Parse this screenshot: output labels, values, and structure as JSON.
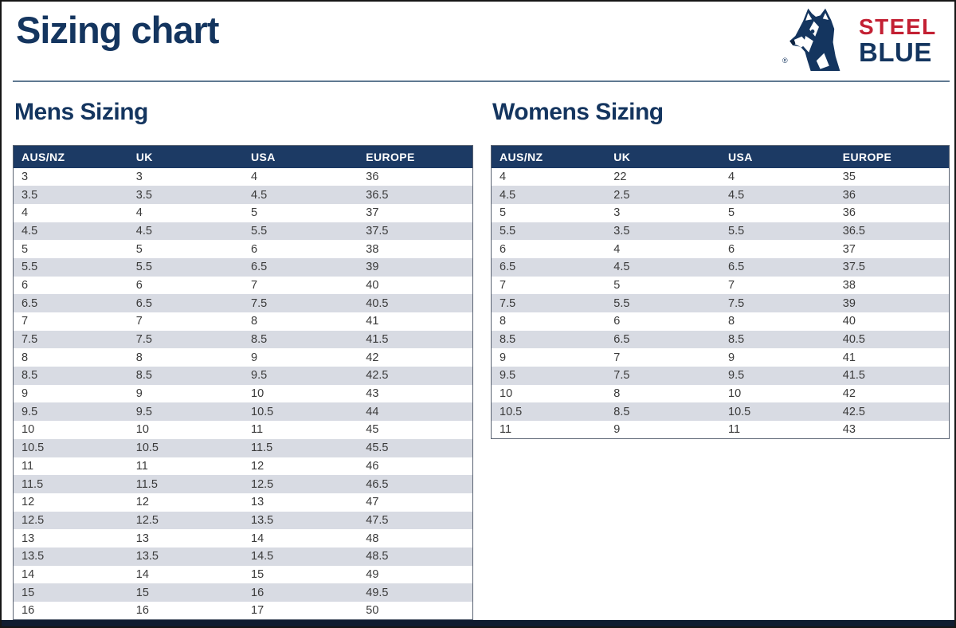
{
  "page": {
    "title": "Sizing chart"
  },
  "logo": {
    "brand_top": "STEEL",
    "brand_bottom": "BLUE",
    "registered_mark": "®",
    "icon": "wolf-head-icon",
    "colors": {
      "steel_red": "#c32033",
      "blue_navy": "#14355f"
    }
  },
  "colors": {
    "navy_text": "#14355f",
    "table_header_bg": "#1c3a64",
    "row_stripe": "#d8dbe3",
    "divider": "#5f7991",
    "bottom_bar": "#101c30",
    "cell_text": "#3a3a3a"
  },
  "columns": [
    "AUS/NZ",
    "UK",
    "USA",
    "EUROPE"
  ],
  "mens": {
    "heading": "Mens Sizing",
    "rows": [
      [
        "3",
        "3",
        "4",
        "36"
      ],
      [
        "3.5",
        "3.5",
        "4.5",
        "36.5"
      ],
      [
        "4",
        "4",
        "5",
        "37"
      ],
      [
        "4.5",
        "4.5",
        "5.5",
        "37.5"
      ],
      [
        "5",
        "5",
        "6",
        "38"
      ],
      [
        "5.5",
        "5.5",
        "6.5",
        "39"
      ],
      [
        "6",
        "6",
        "7",
        "40"
      ],
      [
        "6.5",
        "6.5",
        "7.5",
        "40.5"
      ],
      [
        "7",
        "7",
        "8",
        "41"
      ],
      [
        "7.5",
        "7.5",
        "8.5",
        "41.5"
      ],
      [
        "8",
        "8",
        "9",
        "42"
      ],
      [
        "8.5",
        "8.5",
        "9.5",
        "42.5"
      ],
      [
        "9",
        "9",
        "10",
        "43"
      ],
      [
        "9.5",
        "9.5",
        "10.5",
        "44"
      ],
      [
        "10",
        "10",
        "11",
        "45"
      ],
      [
        "10.5",
        "10.5",
        "11.5",
        "45.5"
      ],
      [
        "11",
        "11",
        "12",
        "46"
      ],
      [
        "11.5",
        "11.5",
        "12.5",
        "46.5"
      ],
      [
        "12",
        "12",
        "13",
        "47"
      ],
      [
        "12.5",
        "12.5",
        "13.5",
        "47.5"
      ],
      [
        "13",
        "13",
        "14",
        "48"
      ],
      [
        "13.5",
        "13.5",
        "14.5",
        "48.5"
      ],
      [
        "14",
        "14",
        "15",
        "49"
      ],
      [
        "15",
        "15",
        "16",
        "49.5"
      ],
      [
        "16",
        "16",
        "17",
        "50"
      ]
    ]
  },
  "womens": {
    "heading": "Womens Sizing",
    "rows": [
      [
        "4",
        "22",
        "4",
        "35"
      ],
      [
        "4.5",
        "2.5",
        "4.5",
        "36"
      ],
      [
        "5",
        "3",
        "5",
        "36"
      ],
      [
        "5.5",
        "3.5",
        "5.5",
        "36.5"
      ],
      [
        "6",
        "4",
        "6",
        "37"
      ],
      [
        "6.5",
        "4.5",
        "6.5",
        "37.5"
      ],
      [
        "7",
        "5",
        "7",
        "38"
      ],
      [
        "7.5",
        "5.5",
        "7.5",
        "39"
      ],
      [
        "8",
        "6",
        "8",
        "40"
      ],
      [
        "8.5",
        "6.5",
        "8.5",
        "40.5"
      ],
      [
        "9",
        "7",
        "9",
        "41"
      ],
      [
        "9.5",
        "7.5",
        "9.5",
        "41.5"
      ],
      [
        "10",
        "8",
        "10",
        "42"
      ],
      [
        "10.5",
        "8.5",
        "10.5",
        "42.5"
      ],
      [
        "11",
        "9",
        "11",
        "43"
      ]
    ]
  }
}
